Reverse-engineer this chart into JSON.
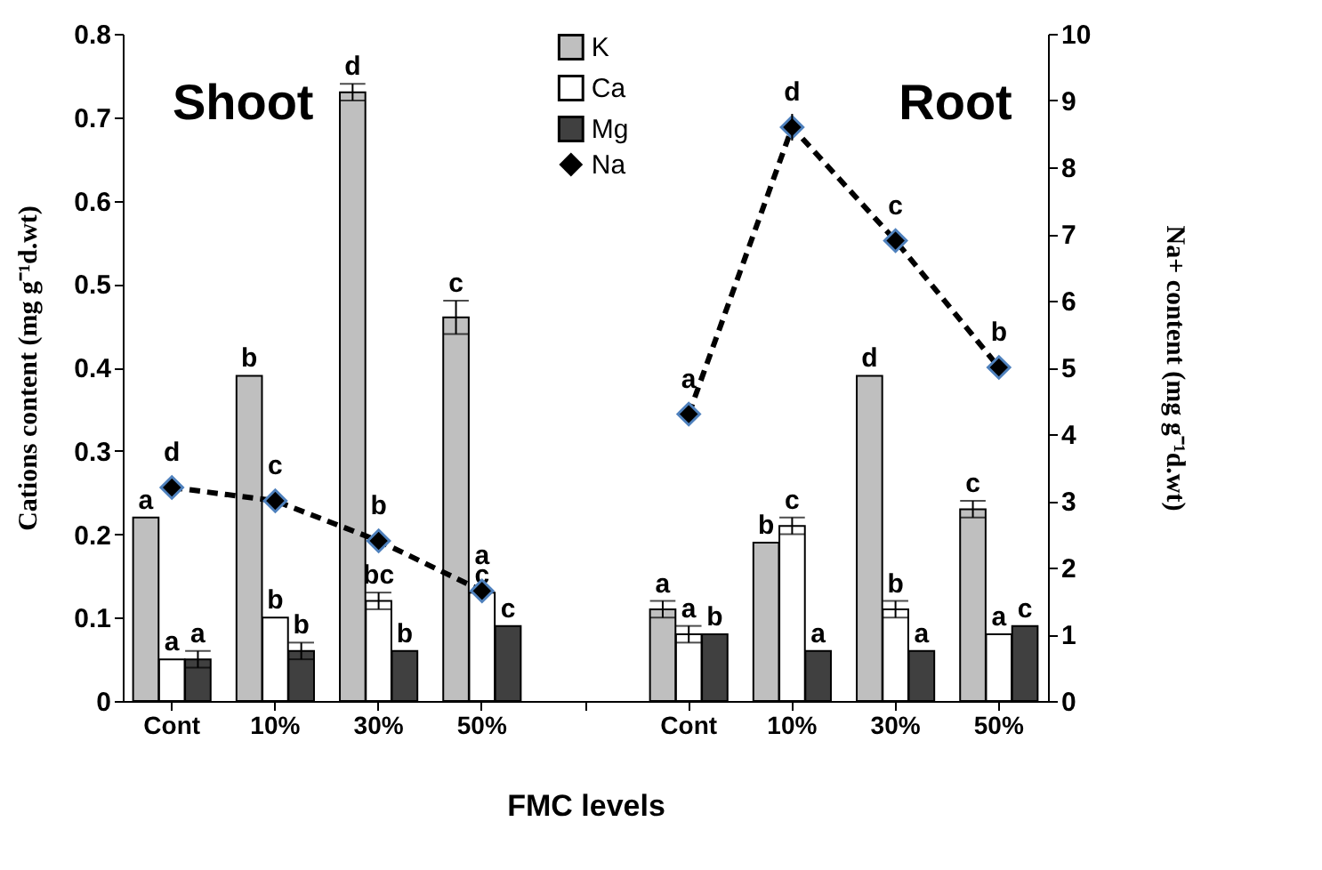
{
  "chart_data": {
    "type": "bar",
    "xlabel": "FMC levels",
    "ylabel": "Cations content (mg g⁻¹d.wt)",
    "y2label": "Na+ content (mg g⁻¹d.wt)",
    "categories": [
      "Cont",
      "10%",
      "30%",
      "50%",
      null,
      "Cont",
      "10%",
      "30%",
      "50%"
    ],
    "series": [
      {
        "name": "K",
        "color": "#bfbfbf",
        "values": [
          0.22,
          0.39,
          0.73,
          0.46,
          null,
          0.11,
          0.19,
          0.39,
          0.23
        ],
        "errors": [
          null,
          null,
          0.01,
          0.02,
          null,
          0.01,
          null,
          null,
          0.01
        ],
        "value_labels": [
          "a",
          "b",
          "d",
          "c",
          null,
          "a",
          "b",
          "d",
          "c"
        ]
      },
      {
        "name": "Ca",
        "color": "#ffffff",
        "values": [
          0.05,
          0.1,
          0.12,
          0.13,
          null,
          0.08,
          0.21,
          0.11,
          0.08
        ],
        "errors": [
          null,
          null,
          0.01,
          null,
          null,
          0.01,
          0.01,
          0.01,
          null
        ],
        "value_labels": [
          "a",
          "b",
          "bc",
          "c",
          null,
          "a",
          "c",
          "b",
          "a"
        ]
      },
      {
        "name": "Mg",
        "color": "#404040",
        "values": [
          0.05,
          0.06,
          0.06,
          0.09,
          null,
          0.08,
          0.06,
          0.06,
          0.09
        ],
        "errors": [
          0.01,
          0.01,
          null,
          null,
          null,
          null,
          null,
          null,
          null
        ],
        "value_labels": [
          "a",
          "b",
          "b",
          "c",
          null,
          "b",
          "a",
          "a",
          "c"
        ]
      },
      {
        "name": "Na",
        "type": "line",
        "axis": "y2",
        "color": "#000000",
        "marker": "diamond",
        "line_style": "dashed",
        "values": [
          3.2,
          3.0,
          2.4,
          1.65,
          null,
          4.3,
          8.6,
          6.9,
          5.0
        ],
        "errors": [
          null,
          null,
          null,
          null,
          null,
          null,
          0.2,
          null,
          null
        ],
        "value_labels": [
          "d",
          "c",
          "b",
          "a",
          null,
          "a",
          "d",
          "c",
          "b"
        ]
      }
    ],
    "ylim": [
      0,
      0.8
    ],
    "yticks": [
      {
        "value": 0,
        "label": "0"
      },
      0.1,
      0.2,
      0.3,
      0.4,
      0.5,
      0.6,
      0.7,
      0.8
    ],
    "y2lim": [
      0,
      10
    ],
    "y2ticks": [
      0,
      1,
      2,
      3,
      4,
      5,
      6,
      7,
      8,
      9,
      10
    ],
    "annotations": [
      "Shoot",
      "Root"
    ],
    "legend": "top",
    "grid": false
  }
}
